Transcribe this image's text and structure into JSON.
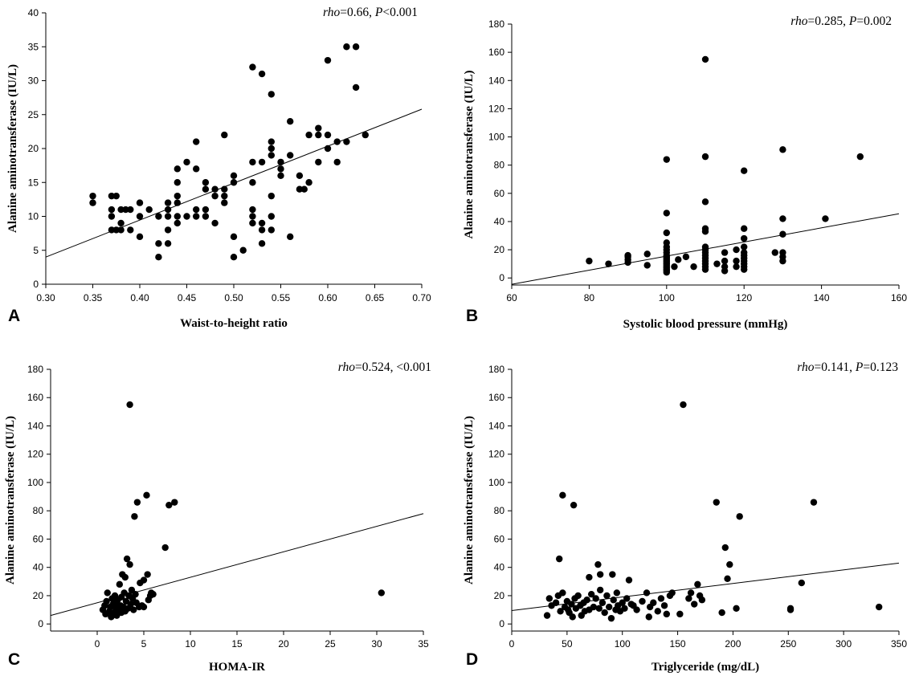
{
  "chart_data": [
    {
      "type": "scatter",
      "panel": "A",
      "xlabel": "Waist-to-height ratio",
      "ylabel": "Alanine aminotransferase (IU/L)",
      "stat": {
        "rho_label": "rho",
        "rho_rest": "=0.66, ",
        "p_label": "P",
        "p_rest": "<0.001"
      },
      "xlim": [
        0.3,
        0.7
      ],
      "ylim": [
        0,
        40
      ],
      "xticks": [
        0.3,
        0.35,
        0.4,
        0.45,
        0.5,
        0.55,
        0.6,
        0.65,
        0.7
      ],
      "xtick_labels": [
        "0.30",
        "0.35",
        "0.40",
        "0.45",
        "0.50",
        "0.55",
        "0.60",
        "0.65",
        "0.70"
      ],
      "yticks": [
        0,
        5,
        10,
        15,
        20,
        25,
        30,
        35,
        40
      ],
      "ytick_labels": [
        "0",
        "5",
        "10",
        "15",
        "20",
        "25",
        "30",
        "35",
        "40"
      ],
      "fit_line": [
        [
          0.3,
          4.0
        ],
        [
          0.7,
          25.8
        ]
      ],
      "points": [
        [
          0.35,
          13
        ],
        [
          0.35,
          12
        ],
        [
          0.37,
          13
        ],
        [
          0.375,
          13
        ],
        [
          0.37,
          11
        ],
        [
          0.37,
          10
        ],
        [
          0.37,
          8
        ],
        [
          0.375,
          8
        ],
        [
          0.38,
          8
        ],
        [
          0.38,
          9
        ],
        [
          0.38,
          11
        ],
        [
          0.385,
          11
        ],
        [
          0.39,
          11
        ],
        [
          0.39,
          8
        ],
        [
          0.4,
          12
        ],
        [
          0.4,
          10
        ],
        [
          0.4,
          7
        ],
        [
          0.41,
          11
        ],
        [
          0.42,
          10
        ],
        [
          0.42,
          6
        ],
        [
          0.42,
          4
        ],
        [
          0.43,
          6
        ],
        [
          0.43,
          8
        ],
        [
          0.43,
          10
        ],
        [
          0.43,
          11
        ],
        [
          0.43,
          12
        ],
        [
          0.44,
          9
        ],
        [
          0.44,
          10
        ],
        [
          0.44,
          12
        ],
        [
          0.44,
          13
        ],
        [
          0.44,
          15
        ],
        [
          0.44,
          17
        ],
        [
          0.45,
          10
        ],
        [
          0.45,
          18
        ],
        [
          0.46,
          10
        ],
        [
          0.46,
          11
        ],
        [
          0.46,
          17
        ],
        [
          0.46,
          21
        ],
        [
          0.47,
          10
        ],
        [
          0.47,
          11
        ],
        [
          0.47,
          14
        ],
        [
          0.47,
          15
        ],
        [
          0.48,
          9
        ],
        [
          0.48,
          13
        ],
        [
          0.48,
          14
        ],
        [
          0.49,
          12
        ],
        [
          0.49,
          13
        ],
        [
          0.49,
          14
        ],
        [
          0.49,
          22
        ],
        [
          0.5,
          4
        ],
        [
          0.5,
          7
        ],
        [
          0.5,
          15
        ],
        [
          0.5,
          16
        ],
        [
          0.51,
          5
        ],
        [
          0.52,
          9
        ],
        [
          0.52,
          10
        ],
        [
          0.52,
          11
        ],
        [
          0.52,
          15
        ],
        [
          0.52,
          18
        ],
        [
          0.52,
          32
        ],
        [
          0.53,
          6
        ],
        [
          0.53,
          8
        ],
        [
          0.53,
          9
        ],
        [
          0.53,
          18
        ],
        [
          0.53,
          31
        ],
        [
          0.54,
          8
        ],
        [
          0.54,
          10
        ],
        [
          0.54,
          13
        ],
        [
          0.54,
          19
        ],
        [
          0.54,
          20
        ],
        [
          0.54,
          21
        ],
        [
          0.54,
          28
        ],
        [
          0.55,
          16
        ],
        [
          0.55,
          17
        ],
        [
          0.55,
          18
        ],
        [
          0.56,
          7
        ],
        [
          0.56,
          19
        ],
        [
          0.56,
          24
        ],
        [
          0.57,
          14
        ],
        [
          0.57,
          16
        ],
        [
          0.575,
          14
        ],
        [
          0.58,
          15
        ],
        [
          0.58,
          22
        ],
        [
          0.59,
          18
        ],
        [
          0.59,
          22
        ],
        [
          0.59,
          23
        ],
        [
          0.6,
          20
        ],
        [
          0.6,
          22
        ],
        [
          0.6,
          33
        ],
        [
          0.61,
          18
        ],
        [
          0.61,
          21
        ],
        [
          0.62,
          21
        ],
        [
          0.62,
          35
        ],
        [
          0.63,
          29
        ],
        [
          0.63,
          35
        ],
        [
          0.64,
          22
        ]
      ]
    },
    {
      "type": "scatter",
      "panel": "B",
      "xlabel": "Systolic blood pressure (mmHg)",
      "ylabel": "Alanine aminotransferase (IU/L)",
      "stat": {
        "rho_label": "rho",
        "rho_rest": "=0.285, ",
        "p_label": "P",
        "p_rest": "=0.002"
      },
      "xlim": [
        60,
        160
      ],
      "ylim": [
        -5,
        180
      ],
      "xticks": [
        60,
        80,
        100,
        120,
        140,
        160
      ],
      "xtick_labels": [
        "60",
        "80",
        "100",
        "120",
        "140",
        "160"
      ],
      "yticks": [
        0,
        20,
        40,
        60,
        80,
        100,
        120,
        140,
        160,
        180
      ],
      "ytick_labels": [
        "0",
        "20",
        "40",
        "60",
        "80",
        "100",
        "120",
        "140",
        "160",
        "180"
      ],
      "fit_line": [
        [
          60,
          -4.5
        ],
        [
          160,
          45.5
        ]
      ],
      "points": [
        [
          80,
          12
        ],
        [
          85,
          10
        ],
        [
          90,
          11
        ],
        [
          90,
          13
        ],
        [
          90,
          15
        ],
        [
          90,
          16
        ],
        [
          95,
          9
        ],
        [
          95,
          17
        ],
        [
          100,
          4
        ],
        [
          100,
          5
        ],
        [
          100,
          6
        ],
        [
          100,
          7
        ],
        [
          100,
          8
        ],
        [
          100,
          9
        ],
        [
          100,
          10
        ],
        [
          100,
          11
        ],
        [
          100,
          12
        ],
        [
          100,
          13
        ],
        [
          100,
          14
        ],
        [
          100,
          15
        ],
        [
          100,
          16
        ],
        [
          100,
          18
        ],
        [
          100,
          20
        ],
        [
          100,
          22
        ],
        [
          100,
          25
        ],
        [
          100,
          32
        ],
        [
          100,
          46
        ],
        [
          100,
          84
        ],
        [
          102,
          8
        ],
        [
          103,
          13
        ],
        [
          105,
          15
        ],
        [
          107,
          8
        ],
        [
          110,
          6
        ],
        [
          110,
          8
        ],
        [
          110,
          10
        ],
        [
          110,
          12
        ],
        [
          110,
          14
        ],
        [
          110,
          16
        ],
        [
          110,
          18
        ],
        [
          110,
          20
        ],
        [
          110,
          22
        ],
        [
          110,
          33
        ],
        [
          110,
          35
        ],
        [
          110,
          54
        ],
        [
          110,
          86
        ],
        [
          110,
          155
        ],
        [
          113,
          10
        ],
        [
          115,
          5
        ],
        [
          115,
          8
        ],
        [
          115,
          12
        ],
        [
          115,
          18
        ],
        [
          118,
          8
        ],
        [
          118,
          12
        ],
        [
          118,
          20
        ],
        [
          120,
          6
        ],
        [
          120,
          8
        ],
        [
          120,
          10
        ],
        [
          120,
          12
        ],
        [
          120,
          14
        ],
        [
          120,
          16
        ],
        [
          120,
          18
        ],
        [
          120,
          22
        ],
        [
          120,
          28
        ],
        [
          120,
          35
        ],
        [
          120,
          76
        ],
        [
          128,
          18
        ],
        [
          130,
          12
        ],
        [
          130,
          15
        ],
        [
          130,
          18
        ],
        [
          130,
          31
        ],
        [
          130,
          42
        ],
        [
          130,
          91
        ],
        [
          141,
          42
        ],
        [
          150,
          86
        ]
      ]
    },
    {
      "type": "scatter",
      "panel": "C",
      "xlabel": "HOMA-IR",
      "ylabel": "Alanine aminotransferase (IU/L)",
      "stat": {
        "rho_label": "rho",
        "rho_rest": "=0.524, <0.001",
        "p_label": "",
        "p_rest": ""
      },
      "xlim": [
        -5,
        35
      ],
      "ylim": [
        -5,
        180
      ],
      "xticks": [
        0,
        5,
        10,
        15,
        20,
        25,
        30,
        35
      ],
      "xtick_labels": [
        "0",
        "5",
        "10",
        "15",
        "20",
        "25",
        "30",
        "35"
      ],
      "yticks": [
        0,
        20,
        40,
        60,
        80,
        100,
        120,
        140,
        160,
        180
      ],
      "ytick_labels": [
        "0",
        "20",
        "40",
        "60",
        "80",
        "100",
        "120",
        "140",
        "160",
        "180"
      ],
      "fit_line": [
        [
          -5,
          6
        ],
        [
          35,
          78
        ]
      ],
      "points": [
        [
          0.6,
          10
        ],
        [
          0.8,
          13
        ],
        [
          0.9,
          7
        ],
        [
          1.0,
          16
        ],
        [
          1.1,
          22
        ],
        [
          1.3,
          9
        ],
        [
          1.4,
          12
        ],
        [
          1.5,
          5
        ],
        [
          1.6,
          18
        ],
        [
          1.7,
          14
        ],
        [
          1.8,
          8
        ],
        [
          1.9,
          20
        ],
        [
          2.0,
          11
        ],
        [
          2.0,
          15
        ],
        [
          2.1,
          6
        ],
        [
          2.2,
          17
        ],
        [
          2.3,
          10
        ],
        [
          2.4,
          28
        ],
        [
          2.5,
          13
        ],
        [
          2.6,
          8
        ],
        [
          2.6,
          19
        ],
        [
          2.7,
          35
        ],
        [
          2.8,
          12
        ],
        [
          2.9,
          22
        ],
        [
          3.0,
          33
        ],
        [
          3.0,
          9
        ],
        [
          3.1,
          16
        ],
        [
          3.2,
          46
        ],
        [
          3.3,
          11
        ],
        [
          3.4,
          20
        ],
        [
          3.5,
          155
        ],
        [
          3.5,
          42
        ],
        [
          3.6,
          14
        ],
        [
          3.7,
          24
        ],
        [
          3.8,
          18
        ],
        [
          3.9,
          10
        ],
        [
          4.0,
          76
        ],
        [
          4.1,
          21
        ],
        [
          4.2,
          15
        ],
        [
          4.3,
          86
        ],
        [
          4.5,
          12
        ],
        [
          4.6,
          29
        ],
        [
          4.8,
          13
        ],
        [
          5.0,
          31
        ],
        [
          5.0,
          12
        ],
        [
          5.3,
          91
        ],
        [
          5.4,
          35
        ],
        [
          5.5,
          17
        ],
        [
          5.7,
          20
        ],
        [
          5.8,
          22
        ],
        [
          6.0,
          21
        ],
        [
          7.3,
          54
        ],
        [
          7.7,
          84
        ],
        [
          8.3,
          86
        ],
        [
          30.5,
          22
        ]
      ]
    },
    {
      "type": "scatter",
      "panel": "D",
      "xlabel": "Triglyceride (mg/dL)",
      "ylabel": "Alanine aminotransferase (IU/L)",
      "stat": {
        "rho_label": "rho",
        "rho_rest": "=0.141, ",
        "p_label": "P",
        "p_rest": "=0.123"
      },
      "xlim": [
        0,
        350
      ],
      "ylim": [
        -5,
        180
      ],
      "xticks": [
        0,
        50,
        100,
        150,
        200,
        250,
        300,
        350
      ],
      "xtick_labels": [
        "0",
        "50",
        "100",
        "150",
        "200",
        "250",
        "300",
        "350"
      ],
      "yticks": [
        0,
        20,
        40,
        60,
        80,
        100,
        120,
        140,
        160,
        180
      ],
      "ytick_labels": [
        "0",
        "20",
        "40",
        "60",
        "80",
        "100",
        "120",
        "140",
        "160",
        "180"
      ],
      "fit_line": [
        [
          0,
          9.5
        ],
        [
          350,
          43
        ]
      ],
      "points": [
        [
          32,
          6
        ],
        [
          34,
          18
        ],
        [
          36,
          13
        ],
        [
          40,
          15
        ],
        [
          42,
          20
        ],
        [
          43,
          46
        ],
        [
          44,
          9
        ],
        [
          46,
          22
        ],
        [
          46,
          91
        ],
        [
          48,
          12
        ],
        [
          50,
          16
        ],
        [
          51,
          10
        ],
        [
          52,
          8
        ],
        [
          54,
          14
        ],
        [
          55,
          5
        ],
        [
          56,
          84
        ],
        [
          57,
          18
        ],
        [
          58,
          11
        ],
        [
          60,
          20
        ],
        [
          62,
          13
        ],
        [
          63,
          6
        ],
        [
          65,
          15
        ],
        [
          66,
          9
        ],
        [
          68,
          17
        ],
        [
          70,
          33
        ],
        [
          70,
          10
        ],
        [
          72,
          21
        ],
        [
          74,
          12
        ],
        [
          76,
          18
        ],
        [
          78,
          42
        ],
        [
          79,
          11
        ],
        [
          80,
          24
        ],
        [
          80,
          35
        ],
        [
          82,
          15
        ],
        [
          84,
          8
        ],
        [
          86,
          20
        ],
        [
          88,
          12
        ],
        [
          90,
          4
        ],
        [
          91,
          35
        ],
        [
          92,
          17
        ],
        [
          94,
          10
        ],
        [
          95,
          22
        ],
        [
          96,
          13
        ],
        [
          98,
          9
        ],
        [
          100,
          15
        ],
        [
          102,
          11
        ],
        [
          104,
          18
        ],
        [
          106,
          31
        ],
        [
          108,
          14
        ],
        [
          110,
          13
        ],
        [
          113,
          10
        ],
        [
          118,
          16
        ],
        [
          122,
          22
        ],
        [
          124,
          5
        ],
        [
          125,
          12
        ],
        [
          128,
          15
        ],
        [
          132,
          9
        ],
        [
          135,
          18
        ],
        [
          138,
          13
        ],
        [
          140,
          7
        ],
        [
          143,
          20
        ],
        [
          145,
          22
        ],
        [
          152,
          7
        ],
        [
          155,
          155
        ],
        [
          160,
          18
        ],
        [
          162,
          22
        ],
        [
          165,
          14
        ],
        [
          168,
          28
        ],
        [
          170,
          20
        ],
        [
          172,
          17
        ],
        [
          185,
          86
        ],
        [
          190,
          8
        ],
        [
          193,
          54
        ],
        [
          195,
          32
        ],
        [
          197,
          42
        ],
        [
          203,
          11
        ],
        [
          206,
          76
        ],
        [
          252,
          10
        ],
        [
          252,
          11
        ],
        [
          262,
          29
        ],
        [
          273,
          86
        ],
        [
          332,
          12
        ]
      ]
    }
  ]
}
